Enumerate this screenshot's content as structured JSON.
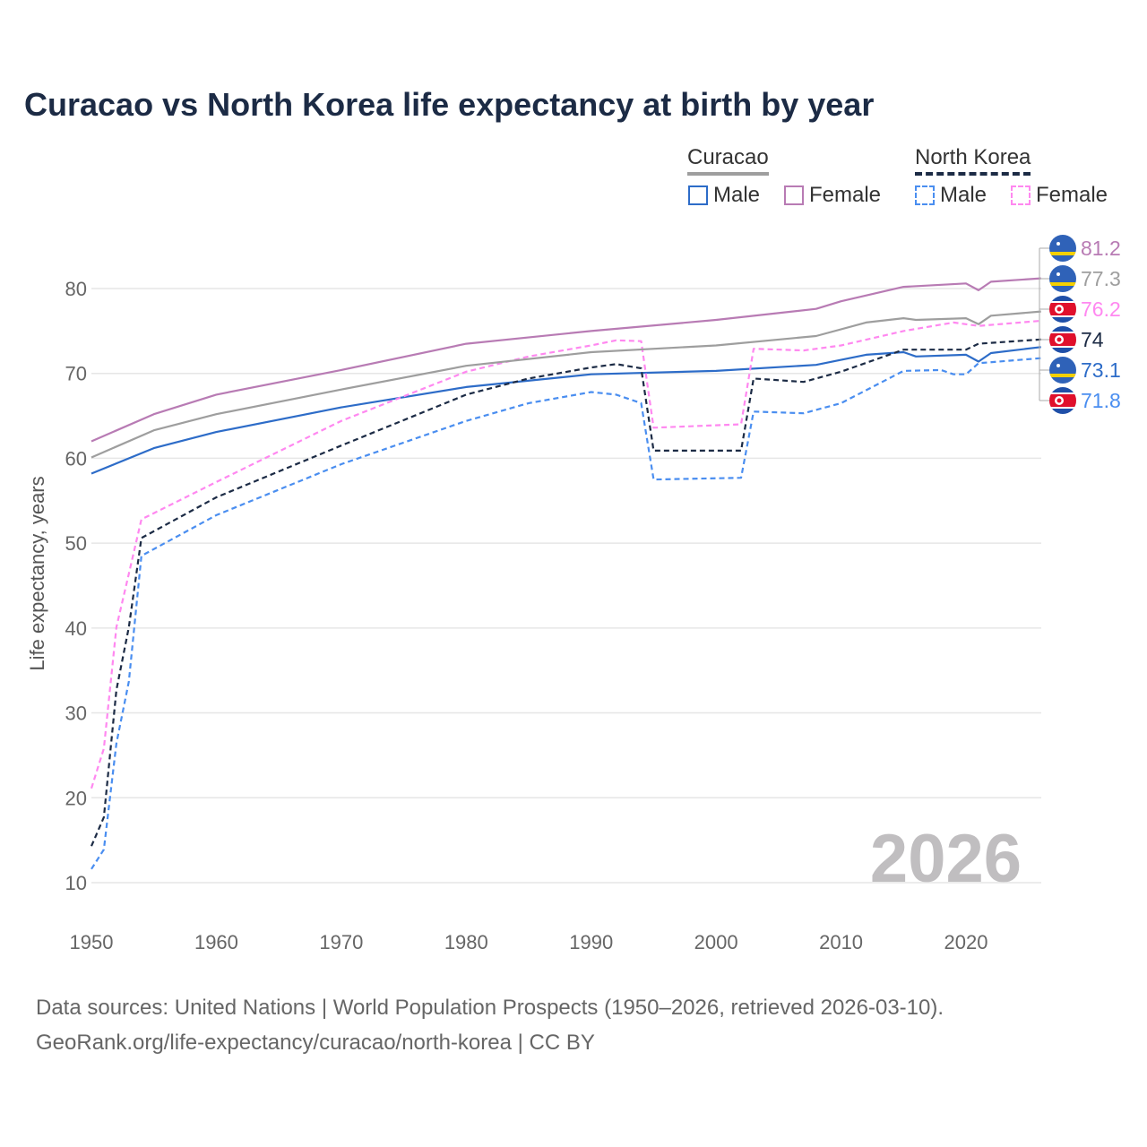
{
  "chart_data": {
    "type": "line",
    "title": "Curacao vs North Korea life expectancy at birth by year",
    "xlabel": "",
    "ylabel": "Life expectancy, years",
    "xlim": [
      1950,
      2026
    ],
    "ylim": [
      10,
      85
    ],
    "xticks": [
      "1950",
      "1960",
      "1970",
      "1980",
      "1990",
      "2000",
      "2010",
      "2020"
    ],
    "yticks": [
      "10",
      "20",
      "30",
      "40",
      "50",
      "60",
      "70",
      "80"
    ],
    "grid": true,
    "watermark": "2026",
    "legend": {
      "placement": "top-right",
      "groups": [
        {
          "name": "Curacao",
          "items": [
            "Male",
            "Female"
          ]
        },
        {
          "name": "North Korea",
          "items": [
            "Male",
            "Female"
          ]
        }
      ]
    },
    "series": [
      {
        "name": "Curacao Female",
        "color": "#b87bb4",
        "dashed": false,
        "flag": "curacao",
        "end_label": "81.2",
        "x": [
          1950,
          1955,
          1960,
          1970,
          1980,
          1990,
          2000,
          2008,
          2010,
          2015,
          2020,
          2021,
          2022,
          2026
        ],
        "y": [
          62,
          65.2,
          67.5,
          70.4,
          73.5,
          75,
          76.3,
          77.6,
          78.5,
          80.2,
          80.6,
          79.8,
          80.8,
          81.2
        ]
      },
      {
        "name": "Curacao",
        "color": "#9e9e9e",
        "dashed": false,
        "flag": "curacao",
        "end_label": "77.3",
        "x": [
          1950,
          1955,
          1960,
          1970,
          1980,
          1990,
          2000,
          2008,
          2012,
          2015,
          2016,
          2020,
          2021,
          2022,
          2026
        ],
        "y": [
          60.1,
          63.3,
          65.2,
          68.1,
          70.9,
          72.5,
          73.3,
          74.4,
          76,
          76.5,
          76.3,
          76.5,
          75.8,
          76.8,
          77.3
        ]
      },
      {
        "name": "North Korea Female",
        "color": "#ff88f0",
        "dashed": true,
        "flag": "north-korea",
        "end_label": "76.2",
        "x": [
          1950,
          1951,
          1952,
          1953,
          1954,
          1960,
          1970,
          1980,
          1985,
          1990,
          1992,
          1994,
          1995,
          2002,
          2003,
          2007,
          2010,
          2015,
          2019,
          2020,
          2021,
          2026
        ],
        "y": [
          21.1,
          25.8,
          40.1,
          46.4,
          52.8,
          57.2,
          64.4,
          70.2,
          72,
          73.3,
          73.9,
          73.8,
          63.6,
          64,
          72.9,
          72.7,
          73.3,
          75,
          76,
          75.8,
          75.6,
          76.2
        ]
      },
      {
        "name": "North Korea",
        "color": "#1c2b45",
        "dashed": true,
        "flag": "north-korea",
        "end_label": "74",
        "x": [
          1950,
          1951,
          1952,
          1953,
          1954,
          1960,
          1970,
          1980,
          1985,
          1990,
          1992,
          1994,
          1995,
          2002,
          2003,
          2007,
          2010,
          2015,
          2020,
          2021,
          2026
        ],
        "y": [
          14.3,
          17.7,
          32.7,
          40.1,
          50.6,
          55.4,
          61.5,
          67.5,
          69.4,
          70.7,
          71.1,
          70.6,
          60.9,
          60.9,
          69.4,
          69,
          70.2,
          72.8,
          72.8,
          73.5,
          74
        ]
      },
      {
        "name": "Curacao Male",
        "color": "#2d6cc8",
        "dashed": false,
        "flag": "curacao",
        "end_label": "73.1",
        "x": [
          1950,
          1955,
          1960,
          1970,
          1980,
          1990,
          2000,
          2008,
          2012,
          2015,
          2016,
          2020,
          2021,
          2022,
          2026
        ],
        "y": [
          58.2,
          61.2,
          63.1,
          66,
          68.4,
          69.9,
          70.3,
          71,
          72.2,
          72.5,
          72,
          72.2,
          71.4,
          72.4,
          73.1
        ]
      },
      {
        "name": "North Korea Male",
        "color": "#4a8ef0",
        "dashed": true,
        "flag": "north-korea",
        "end_label": "71.8",
        "x": [
          1950,
          1951,
          1952,
          1953,
          1954,
          1960,
          1970,
          1980,
          1985,
          1990,
          1992,
          1994,
          1995,
          2002,
          2003,
          2007,
          2010,
          2015,
          2018,
          2019,
          2020,
          2021,
          2026
        ],
        "y": [
          11.6,
          13.9,
          26.4,
          33.7,
          48.5,
          53.3,
          59.3,
          64.4,
          66.5,
          67.8,
          67.5,
          66.5,
          57.5,
          57.7,
          65.5,
          65.3,
          66.5,
          70.3,
          70.4,
          69.9,
          69.9,
          71.2,
          71.8
        ]
      }
    ]
  },
  "legend_colors": {
    "curacao_male": "#2d6cc8",
    "curacao_female": "#b87bb4",
    "nk_male": "#4a8ef0",
    "nk_female": "#ff88f0"
  },
  "footer": {
    "line1": "Data sources: United Nations | World Population Prospects (1950–2026, retrieved 2026-03-10).",
    "line2": "GeoRank.org/life-expectancy/curacao/north-korea | CC BY"
  }
}
